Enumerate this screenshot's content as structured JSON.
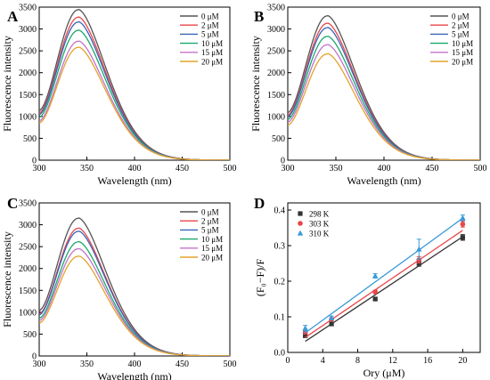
{
  "figure": {
    "panels": [
      {
        "letter": "A",
        "chart_data": {
          "type": "line",
          "xlabel": "Wavelength (nm)",
          "ylabel": "Fluorescence intensity",
          "xlim": [
            300,
            500
          ],
          "ylim": [
            0,
            3500
          ],
          "xticks": [
            300,
            350,
            400,
            450,
            500
          ],
          "yticks": [
            0,
            500,
            1000,
            1500,
            2000,
            2500,
            3000,
            3500
          ],
          "peak_wavelength": 341,
          "start_fraction": 0.33,
          "legend_position": "top-right",
          "series": [
            {
              "name": "0 μM",
              "peak": 3440,
              "color": "#555555"
            },
            {
              "name": "2 μM",
              "peak": 3270,
              "color": "#e8464a"
            },
            {
              "name": "5 μM",
              "peak": 3160,
              "color": "#3a62b8"
            },
            {
              "name": "10 μM",
              "peak": 2970,
              "color": "#1aa86c"
            },
            {
              "name": "15 μM",
              "peak": 2720,
              "color": "#c472c9"
            },
            {
              "name": "20 μM",
              "peak": 2580,
              "color": "#e3a32a"
            }
          ]
        }
      },
      {
        "letter": "B",
        "chart_data": {
          "type": "line",
          "xlabel": "Wavelength (nm)",
          "ylabel": "Fluorescence intensity",
          "xlim": [
            300,
            500
          ],
          "ylim": [
            0,
            3500
          ],
          "xticks": [
            300,
            350,
            400,
            450,
            500
          ],
          "yticks": [
            0,
            500,
            1000,
            1500,
            2000,
            2500,
            3000,
            3500
          ],
          "peak_wavelength": 341,
          "start_fraction": 0.33,
          "legend_position": "top-right",
          "series": [
            {
              "name": "0 μM",
              "peak": 3300,
              "color": "#555555"
            },
            {
              "name": "2 μM",
              "peak": 3130,
              "color": "#e8464a"
            },
            {
              "name": "5 μM",
              "peak": 3030,
              "color": "#3a62b8"
            },
            {
              "name": "10 μM",
              "peak": 2830,
              "color": "#1aa86c"
            },
            {
              "name": "15 μM",
              "peak": 2640,
              "color": "#c472c9"
            },
            {
              "name": "20 μM",
              "peak": 2430,
              "color": "#e3a32a"
            }
          ]
        }
      },
      {
        "letter": "C",
        "chart_data": {
          "type": "line",
          "xlabel": "Wavelength (nm)",
          "ylabel": "Fluorescence intensity",
          "xlim": [
            300,
            500
          ],
          "ylim": [
            0,
            3500
          ],
          "xticks": [
            300,
            350,
            400,
            450,
            500
          ],
          "yticks": [
            0,
            500,
            1000,
            1500,
            2000,
            2500,
            3000,
            3500
          ],
          "peak_wavelength": 341,
          "start_fraction": 0.33,
          "legend_position": "top-right",
          "series": [
            {
              "name": "0 μM",
              "peak": 3150,
              "color": "#555555"
            },
            {
              "name": "2 μM",
              "peak": 2920,
              "color": "#e8464a"
            },
            {
              "name": "5 μM",
              "peak": 2850,
              "color": "#3a62b8"
            },
            {
              "name": "10 μM",
              "peak": 2610,
              "color": "#1aa86c"
            },
            {
              "name": "15 μM",
              "peak": 2450,
              "color": "#c472c9"
            },
            {
              "name": "20 μM",
              "peak": 2280,
              "color": "#e3a32a"
            }
          ]
        }
      },
      {
        "letter": "D",
        "chart_data": {
          "type": "scatter",
          "xlabel": "Ory (μM)",
          "ylabel": "(F₀−F)/F",
          "xlim": [
            0,
            22
          ],
          "ylim": [
            0,
            0.42
          ],
          "xticks": [
            0,
            4,
            8,
            12,
            16,
            20
          ],
          "yticks": [
            0.0,
            0.1,
            0.2,
            0.3,
            0.4
          ],
          "legend_position": "top-left",
          "x": [
            2,
            5,
            10,
            15,
            20
          ],
          "series": [
            {
              "name": "298 K",
              "marker": "square",
              "color": "#333333",
              "values": [
                0.047,
                0.08,
                0.15,
                0.25,
                0.323
              ],
              "errors": [
                0.005,
                0.004,
                0.005,
                0.008,
                0.008
              ],
              "fit": [
                0.031,
                0.325
              ]
            },
            {
              "name": "303 K",
              "marker": "circle",
              "color": "#e8464a",
              "values": [
                0.057,
                0.093,
                0.17,
                0.26,
                0.36
              ],
              "errors": [
                0.005,
                0.004,
                0.005,
                0.009,
                0.008
              ],
              "fit": [
                0.042,
                0.343
              ]
            },
            {
              "name": "310 K",
              "marker": "triangle",
              "color": "#3a9ad8",
              "values": [
                0.068,
                0.097,
                0.215,
                0.29,
                0.378
              ],
              "errors": [
                0.008,
                0.005,
                0.006,
                0.028,
                0.008
              ],
              "fit": [
                0.055,
                0.377
              ]
            }
          ]
        }
      }
    ]
  }
}
